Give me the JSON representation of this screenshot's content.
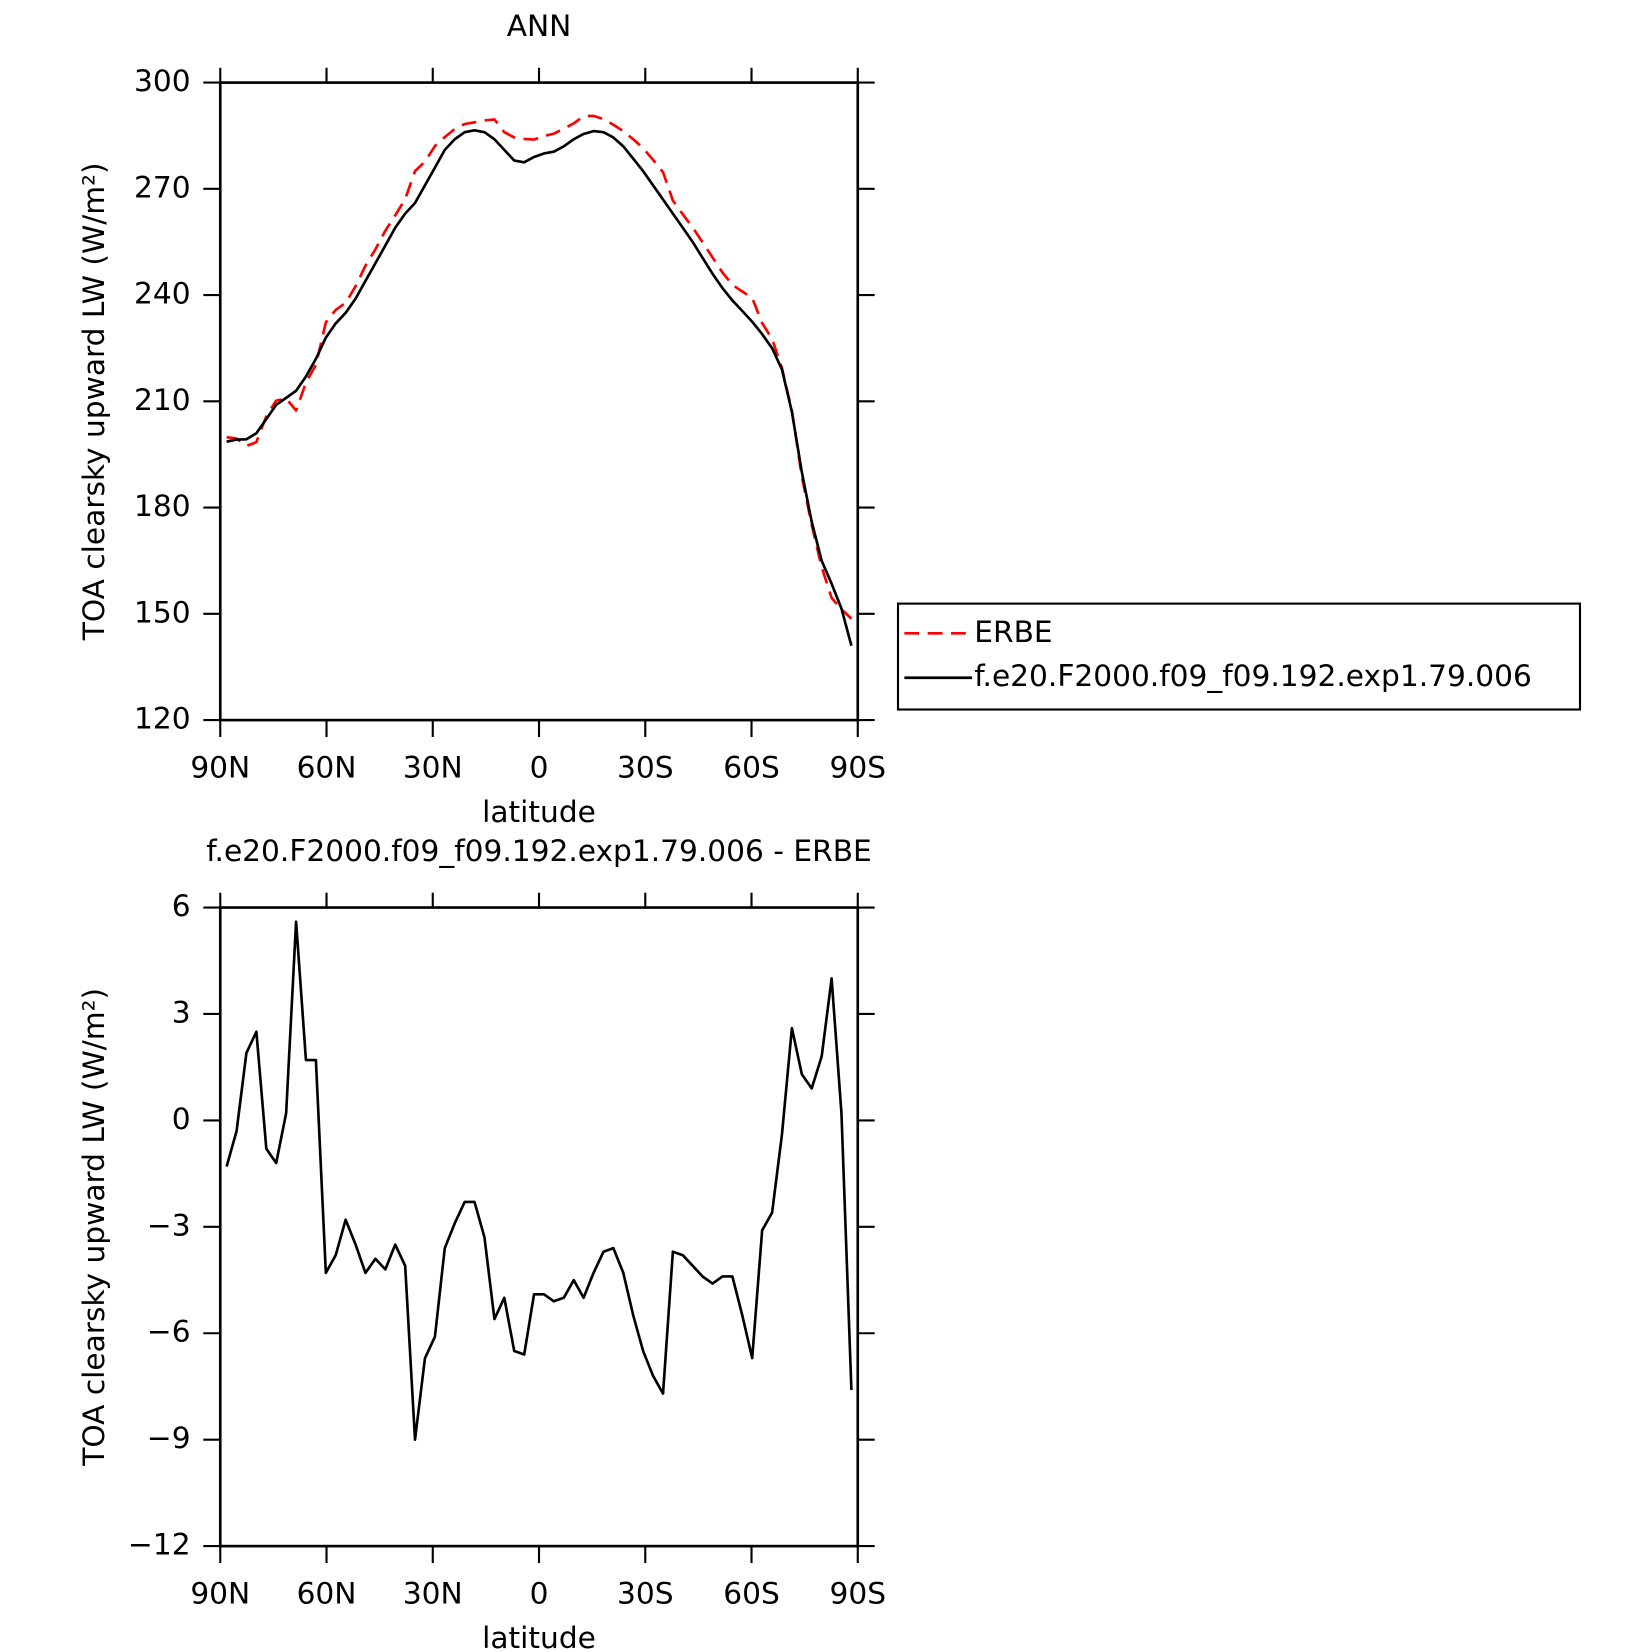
{
  "chart_data": [
    {
      "type": "line",
      "title": "ANN",
      "xlabel": "latitude",
      "ylabel": "TOA clearsky upward LW (W/m²)",
      "x": [
        88.2,
        85.4,
        82.6,
        79.8,
        77.0,
        74.2,
        71.4,
        68.6,
        65.8,
        63.0,
        60.2,
        57.4,
        54.6,
        51.8,
        49.0,
        46.2,
        43.4,
        40.6,
        37.8,
        35.0,
        32.2,
        29.4,
        26.6,
        23.8,
        21.0,
        18.2,
        15.4,
        12.6,
        9.8,
        7.0,
        4.2,
        1.4,
        -1.4,
        -4.2,
        -7.0,
        -9.8,
        -12.6,
        -15.4,
        -18.2,
        -21.0,
        -23.8,
        -26.6,
        -29.4,
        -32.2,
        -35.0,
        -37.8,
        -40.6,
        -43.4,
        -46.2,
        -49.0,
        -51.8,
        -54.6,
        -57.4,
        -60.2,
        -63.0,
        -65.8,
        -68.6,
        -71.4,
        -74.2,
        -77.0,
        -79.8,
        -82.6,
        -85.4,
        -88.2
      ],
      "series": [
        {
          "name": "ERBE",
          "color": "#ff0000",
          "dash": true,
          "values": [
            199.9,
            199.5,
            197.4,
            198.5,
            205.8,
            210.2,
            210.8,
            207.4,
            215.3,
            220.3,
            232.3,
            235.8,
            237.8,
            242.5,
            248.3,
            252.9,
            258.2,
            262.5,
            267.1,
            275,
            277.7,
            282.1,
            284.6,
            286.9,
            288.3,
            288.8,
            289.3,
            289.6,
            286,
            284.5,
            284.1,
            283.9,
            284.9,
            285.6,
            287,
            288.5,
            290.5,
            290.6,
            289.7,
            288.1,
            286.3,
            284,
            281.5,
            278.2,
            274.7,
            266.7,
            262.8,
            259.1,
            254.9,
            250.6,
            246.4,
            242.9,
            241,
            239.2,
            232.1,
            227.6,
            219.4,
            207.4,
            188.7,
            175.1,
            163.2,
            154.5,
            151.3,
            148.6
          ]
        },
        {
          "name": "f.e20.F2000.f09_f09.192.exp1.79.006",
          "color": "#000000",
          "dash": false,
          "values": [
            198.6,
            199.2,
            199.3,
            201,
            205,
            209,
            211,
            213,
            217,
            222,
            228,
            232,
            235,
            239,
            244,
            249,
            254,
            259,
            263,
            266,
            271,
            276,
            281,
            284,
            286,
            286.5,
            286,
            284,
            281,
            278,
            277.5,
            279,
            280,
            280.5,
            282,
            284,
            285.5,
            286.3,
            286,
            284.5,
            282,
            278.5,
            275,
            271,
            267,
            263,
            259,
            255,
            250.5,
            246,
            242,
            238.5,
            235.5,
            232.5,
            229,
            225,
            219,
            207,
            190,
            176,
            165,
            158.5,
            151.5,
            141
          ]
        }
      ],
      "xlim": [
        90,
        -90
      ],
      "xticks": [
        {
          "value": 90,
          "label": "90N"
        },
        {
          "value": 60,
          "label": "60N"
        },
        {
          "value": 30,
          "label": "30N"
        },
        0,
        {
          "value": -30,
          "label": "30S"
        },
        {
          "value": -60,
          "label": "60S"
        },
        {
          "value": -90,
          "label": "90S"
        }
      ],
      "ylim": [
        120,
        300
      ],
      "yticks": [
        120,
        150,
        180,
        210,
        240,
        270,
        300
      ],
      "legend": "right"
    },
    {
      "type": "line",
      "title": "f.e20.F2000.f09_f09.192.exp1.79.006 - ERBE",
      "xlabel": "latitude",
      "ylabel": "TOA clearsky upward LW (W/m²)",
      "x": [
        88.2,
        85.4,
        82.6,
        79.8,
        77.0,
        74.2,
        71.4,
        68.6,
        65.8,
        63.0,
        60.2,
        57.4,
        54.6,
        51.8,
        49.0,
        46.2,
        43.4,
        40.6,
        37.8,
        35.0,
        32.2,
        29.4,
        26.6,
        23.8,
        21.0,
        18.2,
        15.4,
        12.6,
        9.8,
        7.0,
        4.2,
        1.4,
        -1.4,
        -4.2,
        -7.0,
        -9.8,
        -12.6,
        -15.4,
        -18.2,
        -21.0,
        -23.8,
        -26.6,
        -29.4,
        -32.2,
        -35.0,
        -37.8,
        -40.6,
        -43.4,
        -46.2,
        -49.0,
        -51.8,
        -54.6,
        -57.4,
        -60.2,
        -63.0,
        -65.8,
        -68.6,
        -71.4,
        -74.2,
        -77.0,
        -79.8,
        -82.6,
        -85.4,
        -88.2
      ],
      "series": [
        {
          "color": "#000000",
          "dash": false,
          "values": [
            -1.3,
            -0.3,
            1.9,
            2.5,
            -0.8,
            -1.2,
            0.2,
            5.6,
            1.7,
            1.7,
            -4.3,
            -3.8,
            -2.8,
            -3.5,
            -4.3,
            -3.9,
            -4.2,
            -3.5,
            -4.1,
            -9.0,
            -6.7,
            -6.1,
            -3.6,
            -2.9,
            -2.3,
            -2.3,
            -3.3,
            -5.6,
            -5.0,
            -6.5,
            -6.6,
            -4.9,
            -4.9,
            -5.1,
            -5.0,
            -4.5,
            -5.0,
            -4.3,
            -3.7,
            -3.6,
            -4.3,
            -5.5,
            -6.5,
            -7.2,
            -7.7,
            -3.7,
            -3.8,
            -4.1,
            -4.4,
            -4.6,
            -4.4,
            -4.4,
            -5.5,
            -6.7,
            -3.1,
            -2.6,
            -0.4,
            2.6,
            1.3,
            0.9,
            1.8,
            4.0,
            0.2,
            -7.6
          ]
        }
      ],
      "xlim": [
        90,
        -90
      ],
      "xticks": [
        {
          "value": 90,
          "label": "90N"
        },
        {
          "value": 60,
          "label": "60N"
        },
        {
          "value": 30,
          "label": "30N"
        },
        0,
        {
          "value": -30,
          "label": "30S"
        },
        {
          "value": -60,
          "label": "60S"
        },
        {
          "value": -90,
          "label": "90S"
        }
      ],
      "ylim": [
        -12,
        6
      ],
      "yticks": [
        {
          "value": -12,
          "label": "−12"
        },
        {
          "value": -9,
          "label": "−9"
        },
        {
          "value": -6,
          "label": "−6"
        },
        {
          "value": -3,
          "label": "−3"
        },
        0,
        3,
        6
      ]
    }
  ]
}
